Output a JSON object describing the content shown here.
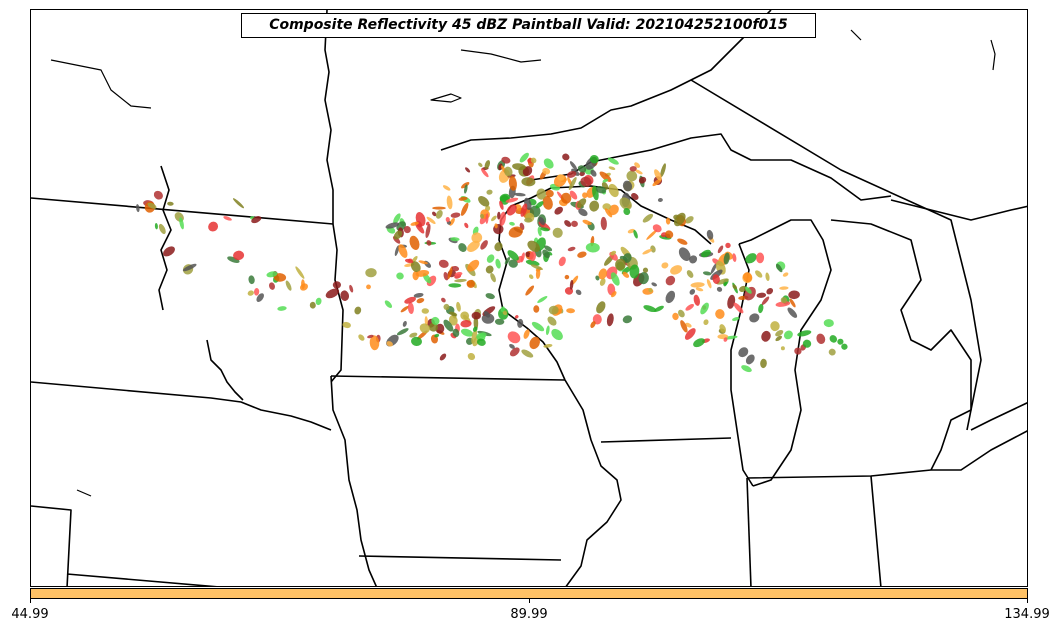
{
  "title": "Composite Reflectivity 45 dBZ Paintball Valid: 202104252100f015",
  "colorbar": {
    "color": "#ffc266",
    "ticks": [
      "44.99",
      "89.99",
      "134.99"
    ]
  },
  "paintball_colors": [
    "#22aa22",
    "#55dd55",
    "#e63333",
    "#ff5555",
    "#ff8c1a",
    "#ffb347",
    "#e06000",
    "#8b1a1a",
    "#b03030",
    "#808020",
    "#a0a040",
    "#555555",
    "#3a7a3a",
    "#c0b040"
  ]
}
